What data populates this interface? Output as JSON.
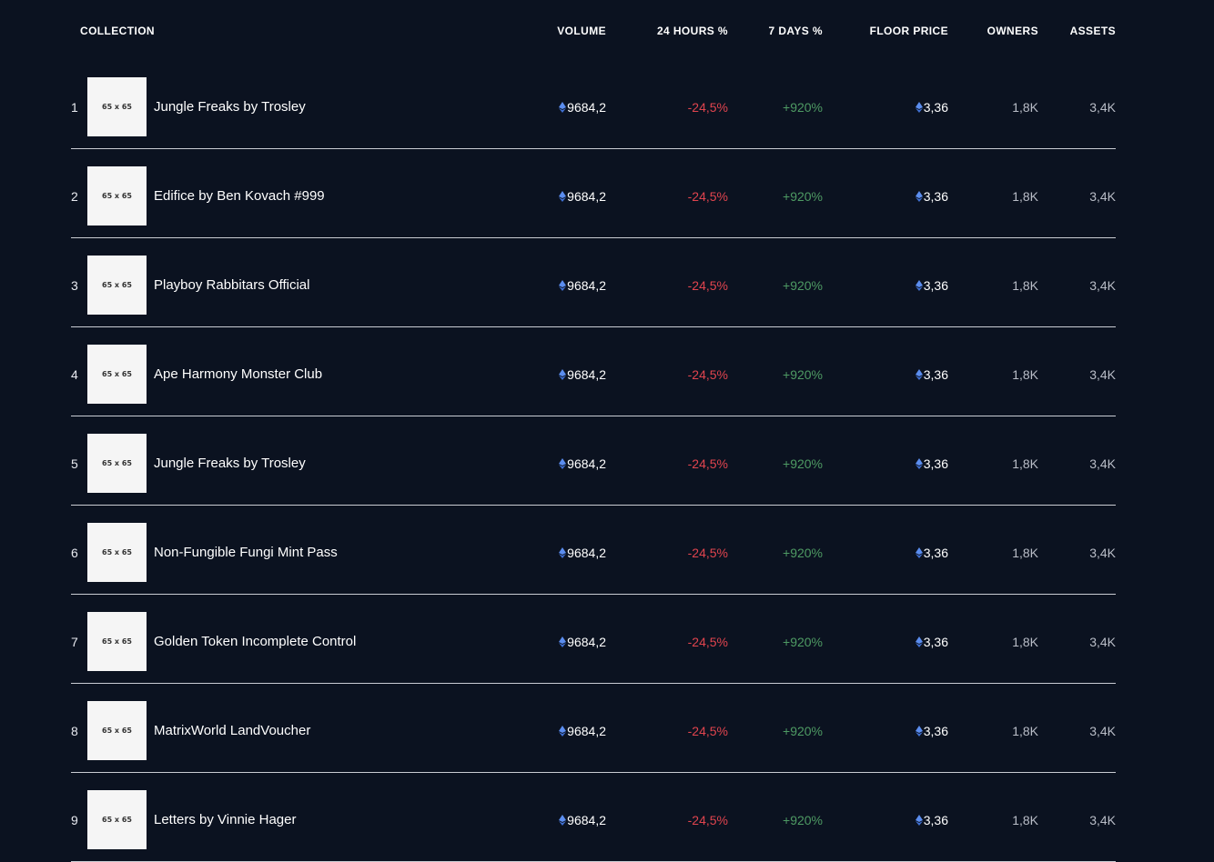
{
  "table": {
    "headers": {
      "collection": "COLLECTION",
      "volume": "VOLUME",
      "change_24h": "24 HOURS %",
      "change_7d": "7 DAYS %",
      "floor_price": "FLOOR PRICE",
      "owners": "OWNERS",
      "assets": "ASSETS"
    },
    "thumb_placeholder": "65 x 65",
    "currency_icon": "ethereum-icon",
    "colors": {
      "background": "#0b1220",
      "negative": "#e0444e",
      "positive": "#4e9a63",
      "eth_icon": "#5b8def"
    },
    "rows": [
      {
        "rank": "1",
        "name": "Jungle Freaks by Trosley",
        "volume": "9684,2",
        "change_24h": "-24,5%",
        "change_7d": "+920%",
        "floor_price": "3,36",
        "owners": "1,8K",
        "assets": "3,4K"
      },
      {
        "rank": "2",
        "name": "Edifice by Ben Kovach #999",
        "volume": "9684,2",
        "change_24h": "-24,5%",
        "change_7d": "+920%",
        "floor_price": "3,36",
        "owners": "1,8K",
        "assets": "3,4K"
      },
      {
        "rank": "3",
        "name": "Playboy Rabbitars Official",
        "volume": "9684,2",
        "change_24h": "-24,5%",
        "change_7d": "+920%",
        "floor_price": "3,36",
        "owners": "1,8K",
        "assets": "3,4K"
      },
      {
        "rank": "4",
        "name": "Ape Harmony Monster Club",
        "volume": "9684,2",
        "change_24h": "-24,5%",
        "change_7d": "+920%",
        "floor_price": "3,36",
        "owners": "1,8K",
        "assets": "3,4K"
      },
      {
        "rank": "5",
        "name": "Jungle Freaks by Trosley",
        "volume": "9684,2",
        "change_24h": "-24,5%",
        "change_7d": "+920%",
        "floor_price": "3,36",
        "owners": "1,8K",
        "assets": "3,4K"
      },
      {
        "rank": "6",
        "name": "Non-Fungible Fungi Mint Pass",
        "volume": "9684,2",
        "change_24h": "-24,5%",
        "change_7d": "+920%",
        "floor_price": "3,36",
        "owners": "1,8K",
        "assets": "3,4K"
      },
      {
        "rank": "7",
        "name": "Golden Token Incomplete Control",
        "volume": "9684,2",
        "change_24h": "-24,5%",
        "change_7d": "+920%",
        "floor_price": "3,36",
        "owners": "1,8K",
        "assets": "3,4K"
      },
      {
        "rank": "8",
        "name": "MatrixWorld LandVoucher",
        "volume": "9684,2",
        "change_24h": "-24,5%",
        "change_7d": "+920%",
        "floor_price": "3,36",
        "owners": "1,8K",
        "assets": "3,4K"
      },
      {
        "rank": "9",
        "name": "Letters by Vinnie Hager",
        "volume": "9684,2",
        "change_24h": "-24,5%",
        "change_7d": "+920%",
        "floor_price": "3,36",
        "owners": "1,8K",
        "assets": "3,4K"
      }
    ]
  }
}
